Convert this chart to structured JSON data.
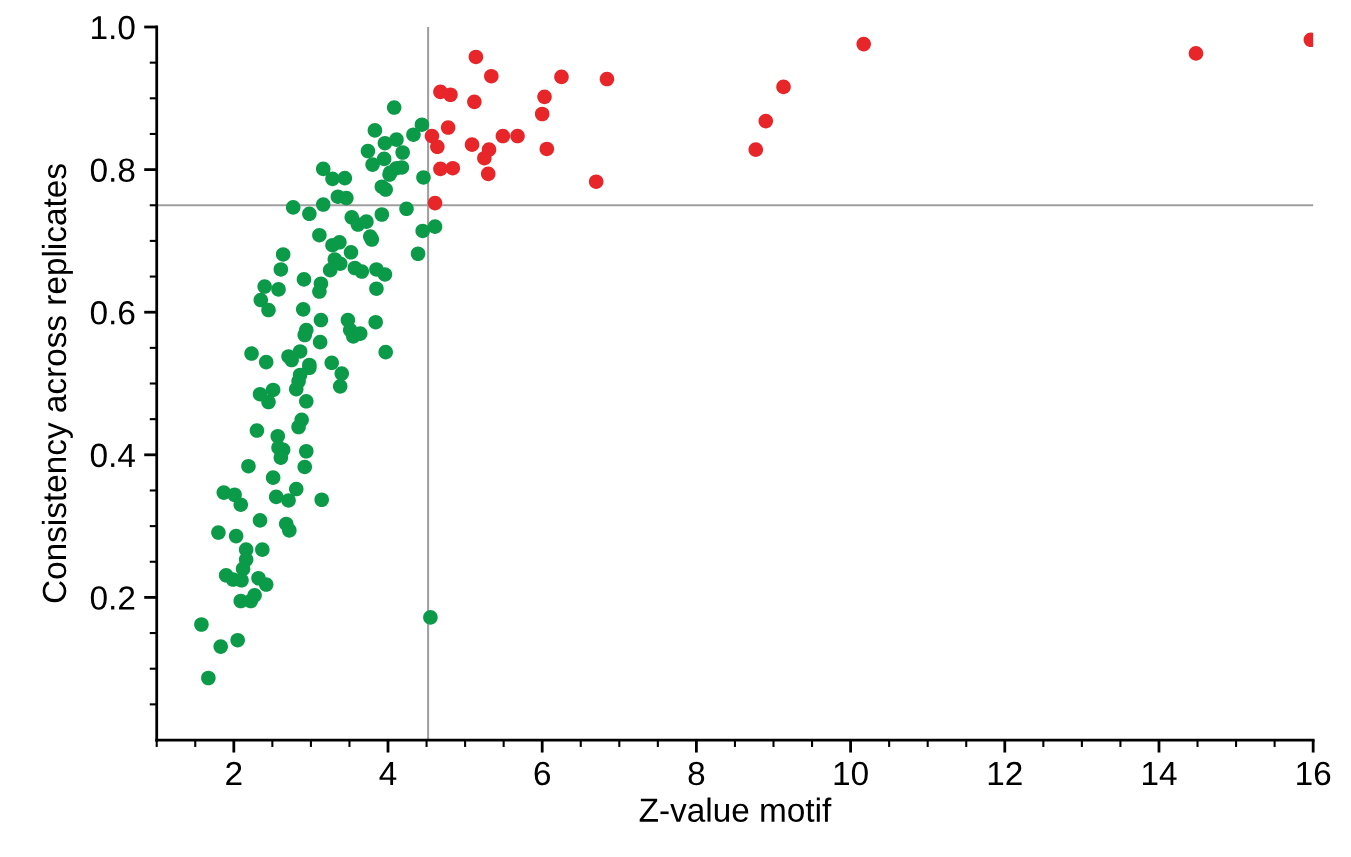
{
  "chart_data": {
    "type": "scatter",
    "xlabel": "Z-value motif",
    "ylabel": "Consistency across replicates",
    "xlim": [
      1,
      16
    ],
    "ylim": [
      0,
      1.0
    ],
    "xticks": [
      {
        "value": 1,
        "label": null
      },
      {
        "value": 1.5,
        "label": null
      },
      2,
      {
        "value": 2.5,
        "label": null
      },
      {
        "value": 3,
        "label": null
      },
      {
        "value": 3.5,
        "label": null
      },
      4,
      {
        "value": 4.5,
        "label": null
      },
      {
        "value": 5,
        "label": null
      },
      {
        "value": 5.5,
        "label": null
      },
      6,
      {
        "value": 6.5,
        "label": null
      },
      {
        "value": 7,
        "label": null
      },
      {
        "value": 7.5,
        "label": null
      },
      8,
      {
        "value": 8.5,
        "label": null
      },
      {
        "value": 9,
        "label": null
      },
      {
        "value": 9.5,
        "label": null
      },
      10,
      {
        "value": 10.5,
        "label": null
      },
      {
        "value": 11,
        "label": null
      },
      {
        "value": 11.5,
        "label": null
      },
      12,
      {
        "value": 12.5,
        "label": null
      },
      {
        "value": 13,
        "label": null
      },
      {
        "value": 13.5,
        "label": null
      },
      14,
      {
        "value": 14.5,
        "label": null
      },
      {
        "value": 15,
        "label": null
      },
      {
        "value": 15.5,
        "label": null
      },
      16
    ],
    "yticks": [
      {
        "value": 0.05,
        "label": null
      },
      {
        "value": 0.1,
        "label": null
      },
      {
        "value": 0.15,
        "label": null
      },
      0.2,
      {
        "value": 0.25,
        "label": null
      },
      {
        "value": 0.3,
        "label": null
      },
      {
        "value": 0.35,
        "label": null
      },
      0.4,
      {
        "value": 0.45,
        "label": null
      },
      {
        "value": 0.5,
        "label": null
      },
      {
        "value": 0.55,
        "label": null
      },
      0.6,
      {
        "value": 0.65,
        "label": null
      },
      {
        "value": 0.7,
        "label": null
      },
      {
        "value": 0.75,
        "label": null
      },
      0.8,
      {
        "value": 0.85,
        "label": null
      },
      {
        "value": 0.9,
        "label": null
      },
      {
        "value": 0.95,
        "label": null
      },
      {
        "value": 1.0,
        "label": "1.0"
      }
    ],
    "grid": false,
    "legend": false,
    "marker": "circle",
    "ref_lines": [
      {
        "axis": "x",
        "value": 4.52,
        "label": null,
        "color": "#a0a0a0"
      },
      {
        "axis": "y",
        "value": 0.75,
        "label": null,
        "color": "#a0a0a0"
      }
    ],
    "series": [
      {
        "color": "#0a9a48",
        "x": [
          4.08,
          3.83,
          4.44,
          4.33,
          4.11,
          3.96,
          3.74,
          4.19,
          3.95,
          3.8,
          4.11,
          4.03,
          4.18,
          4.02,
          4.46,
          3.16,
          3.28,
          3.44,
          3.35,
          3.46,
          3.92,
          3.97,
          2.77,
          2.98,
          3.16,
          3.53,
          3.61,
          3.72,
          3.92,
          4.24,
          4.45,
          4.61,
          3.11,
          3.28,
          3.37,
          3.52,
          3.77,
          3.79,
          2.64,
          2.61,
          3.31,
          3.38,
          3.25,
          3.57,
          3.66,
          3.85,
          3.96,
          4.39,
          2.91,
          3.13,
          3.11,
          2.4,
          2.58,
          2.35,
          2.45,
          2.9,
          3.85,
          3.13,
          2.94,
          2.92,
          3.48,
          3.51,
          3.55,
          3.64,
          3.84,
          3.12,
          3.97,
          2.23,
          2.42,
          2.71,
          2.86,
          2.75,
          2.98,
          3.27,
          2.98,
          3.4,
          2.86,
          2.84,
          2.81,
          3.38,
          2.34,
          2.51,
          2.45,
          2.94,
          2.88,
          2.84,
          2.3,
          2.57,
          2.58,
          2.64,
          2.61,
          2.94,
          2.92,
          2.19,
          2.51,
          2.81,
          2.55,
          2.71,
          3.14,
          1.87,
          2.01,
          2.09,
          2.34,
          2.68,
          2.72,
          1.8,
          2.03,
          2.16,
          2.37,
          2.16,
          2.12,
          1.9,
          1.99,
          2.1,
          2.32,
          2.42,
          2.09,
          2.22,
          2.27,
          1.58,
          1.83,
          2.05,
          1.67,
          4.55
        ],
        "values": [
          0.887,
          0.855,
          0.863,
          0.849,
          0.842,
          0.837,
          0.826,
          0.824,
          0.815,
          0.807,
          0.802,
          0.796,
          0.803,
          0.793,
          0.789,
          0.801,
          0.787,
          0.788,
          0.762,
          0.76,
          0.776,
          0.772,
          0.747,
          0.738,
          0.751,
          0.733,
          0.723,
          0.727,
          0.737,
          0.745,
          0.714,
          0.72,
          0.708,
          0.694,
          0.698,
          0.684,
          0.706,
          0.702,
          0.681,
          0.66,
          0.674,
          0.668,
          0.659,
          0.662,
          0.657,
          0.66,
          0.653,
          0.682,
          0.646,
          0.64,
          0.629,
          0.636,
          0.632,
          0.617,
          0.603,
          0.604,
          0.633,
          0.589,
          0.575,
          0.568,
          0.589,
          0.575,
          0.566,
          0.57,
          0.586,
          0.558,
          0.544,
          0.542,
          0.53,
          0.538,
          0.545,
          0.533,
          0.526,
          0.529,
          0.522,
          0.514,
          0.512,
          0.503,
          0.492,
          0.496,
          0.485,
          0.491,
          0.474,
          0.475,
          0.449,
          0.439,
          0.434,
          0.426,
          0.41,
          0.407,
          0.396,
          0.405,
          0.383,
          0.384,
          0.368,
          0.352,
          0.341,
          0.336,
          0.337,
          0.347,
          0.344,
          0.33,
          0.308,
          0.303,
          0.294,
          0.291,
          0.286,
          0.267,
          0.267,
          0.253,
          0.24,
          0.231,
          0.225,
          0.224,
          0.227,
          0.218,
          0.195,
          0.195,
          0.203,
          0.162,
          0.131,
          0.14,
          0.087,
          0.172
        ]
      },
      {
        "color": "#e8262a",
        "x": [
          5.14,
          5.34,
          6.25,
          6.84,
          4.68,
          4.81,
          5.12,
          6.03,
          6.0,
          4.78,
          5.49,
          5.68,
          4.57,
          4.64,
          5.09,
          5.31,
          5.25,
          6.06,
          4.68,
          4.84,
          5.3,
          6.7,
          4.61,
          10.17,
          14.48,
          15.97,
          9.13,
          8.9,
          8.77
        ],
        "values": [
          0.958,
          0.931,
          0.93,
          0.927,
          0.909,
          0.905,
          0.895,
          0.902,
          0.878,
          0.859,
          0.847,
          0.847,
          0.847,
          0.832,
          0.835,
          0.828,
          0.816,
          0.829,
          0.801,
          0.802,
          0.794,
          0.783,
          0.753,
          0.976,
          0.963,
          0.982,
          0.916,
          0.868,
          0.828
        ]
      }
    ]
  }
}
